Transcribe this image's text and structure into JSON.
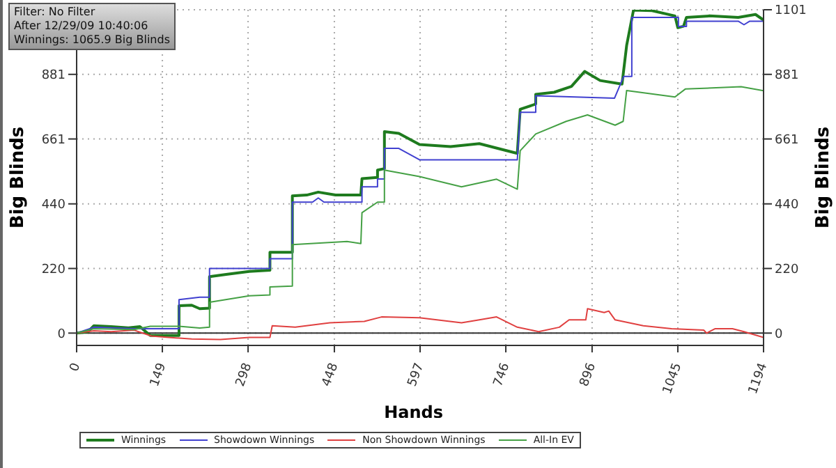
{
  "chart_data": {
    "type": "line",
    "xlabel": "Hands",
    "ylabel": "Big Blinds",
    "y2label": "Big Blinds",
    "annotations": [
      "Filter: No Filter",
      "After 12/29/09 10:40:06",
      "Winnings: 1065.9 Big Blinds"
    ],
    "xlim": [
      0,
      1194
    ],
    "xticks": [
      0,
      149,
      298,
      448,
      597,
      746,
      896,
      1045,
      1194
    ],
    "ylim": [
      -42,
      1101
    ],
    "yticks": [
      0,
      220,
      440,
      661,
      881
    ],
    "y2lim": [
      -42,
      1101
    ],
    "y2ticks": [
      0,
      220,
      440,
      661,
      881,
      1101
    ],
    "grid": true,
    "legend": "bottom",
    "marker": "none",
    "line_style": "solid",
    "ref_lines": [
      {
        "axis": "y",
        "value": 0,
        "color": "#333333"
      }
    ],
    "series": [
      {
        "name": "Winnings",
        "color": "#1e7b1e",
        "x": [
          0,
          20,
          30,
          60,
          90,
          110,
          128,
          178,
          178,
          200,
          214,
          231,
          231,
          260,
          300,
          336,
          336,
          375,
          375,
          400,
          420,
          450,
          494,
          496,
          523,
          523,
          535,
          535,
          560,
          596,
          650,
          700,
          740,
          766,
          771,
          798,
          798,
          830,
          860,
          883,
          910,
          948,
          956,
          968,
          1000,
          1040,
          1045,
          1055,
          1060,
          1100,
          1150,
          1180,
          1194
        ],
        "values": [
          0,
          5,
          25,
          22,
          18,
          22,
          -8,
          -8,
          93,
          95,
          83,
          85,
          192,
          200,
          210,
          214,
          275,
          275,
          467,
          470,
          480,
          470,
          470,
          526,
          530,
          555,
          560,
          686,
          680,
          642,
          635,
          645,
          625,
          612,
          762,
          780,
          813,
          820,
          840,
          891,
          860,
          848,
          979,
          1100,
          1098,
          1080,
          1040,
          1045,
          1075,
          1080,
          1075,
          1085,
          1066
        ]
      },
      {
        "name": "Showdown Winnings",
        "color": "#4040d0",
        "x": [
          0,
          30,
          60,
          100,
          128,
          178,
          178,
          214,
          231,
          231,
          336,
          336,
          375,
          375,
          410,
          420,
          430,
          496,
          496,
          523,
          523,
          535,
          535,
          560,
          596,
          766,
          771,
          798,
          798,
          935,
          951,
          965,
          965,
          1046,
          1046,
          1060,
          1060,
          1150,
          1160,
          1170,
          1194
        ],
        "values": [
          0,
          20,
          18,
          15,
          15,
          15,
          114,
          122,
          122,
          220,
          220,
          253,
          253,
          446,
          446,
          460,
          446,
          446,
          498,
          498,
          525,
          525,
          629,
          629,
          590,
          590,
          752,
          752,
          808,
          800,
          874,
          874,
          1075,
          1075,
          1044,
          1044,
          1062,
          1062,
          1050,
          1062,
          1062
        ]
      },
      {
        "name": "Non Showdown Winnings",
        "color": "#e04040",
        "x": [
          0,
          30,
          60,
          100,
          130,
          160,
          200,
          250,
          300,
          336,
          340,
          380,
          440,
          500,
          530,
          596,
          669,
          700,
          730,
          766,
          803,
          839,
          856,
          885,
          888,
          917,
          925,
          936,
          985,
          1034,
          1090,
          1095,
          1110,
          1140,
          1160,
          1194
        ],
        "values": [
          0,
          8,
          5,
          10,
          -10,
          -15,
          -20,
          -22,
          -15,
          -15,
          25,
          20,
          35,
          40,
          55,
          52,
          35,
          45,
          55,
          20,
          5,
          20,
          45,
          45,
          83,
          70,
          75,
          45,
          25,
          15,
          10,
          0,
          15,
          15,
          5,
          -15
        ]
      },
      {
        "name": "All-In EV",
        "color": "#44a044",
        "x": [
          0,
          30,
          100,
          128,
          178,
          214,
          231,
          231,
          300,
          336,
          336,
          375,
          375,
          470,
          494,
          496,
          523,
          535,
          535,
          596,
          669,
          730,
          766,
          771,
          798,
          851,
          888,
          936,
          950,
          956,
          1040,
          1058,
          1155,
          1194
        ],
        "values": [
          0,
          15,
          12,
          23,
          23,
          17,
          20,
          105,
          127,
          130,
          157,
          160,
          301,
          312,
          305,
          410,
          446,
          446,
          555,
          533,
          498,
          524,
          490,
          621,
          678,
          721,
          743,
          708,
          721,
          826,
          804,
          831,
          839,
          825
        ]
      }
    ]
  }
}
